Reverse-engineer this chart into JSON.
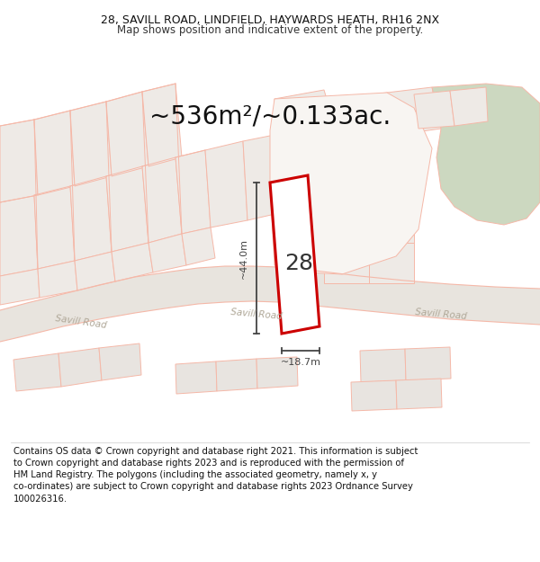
{
  "title_line1": "28, SAVILL ROAD, LINDFIELD, HAYWARDS HEATH, RH16 2NX",
  "title_line2": "Map shows position and indicative extent of the property.",
  "area_text": "~536m²/~0.133ac.",
  "number_label": "28",
  "dim_height": "~44.0m",
  "dim_width": "~18.7m",
  "footer_lines": [
    "Contains OS data © Crown copyright and database right 2021. This information is subject",
    "to Crown copyright and database rights 2023 and is reproduced with the permission of",
    "HM Land Registry. The polygons (including the associated geometry, namely x, y",
    "co-ordinates) are subject to Crown copyright and database rights 2023 Ordnance Survey",
    "100026316."
  ],
  "bg_color": "#ffffff",
  "map_bg": "#ffffff",
  "road_fill": "#e8e4de",
  "road_line": "#f0c0b0",
  "parcel_fill": "#eeeae6",
  "parcel_line": "#f5b8a8",
  "plot_line_color": "#cc0000",
  "dim_line_color": "#444444",
  "green_fill": "#ccd8c0",
  "road_text_color": "#aaaaaa",
  "title_fontsize": 9.0,
  "subtitle_fontsize": 8.5,
  "area_fontsize": 20,
  "footer_fontsize": 7.2,
  "number_fontsize": 18
}
